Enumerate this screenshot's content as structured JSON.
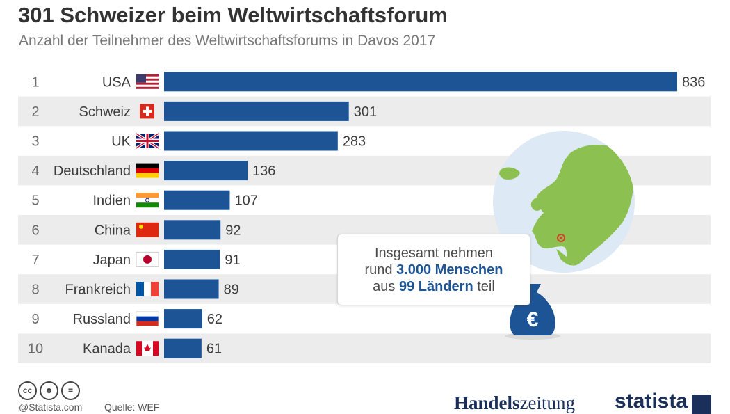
{
  "title": "301 Schweizer beim Weltwirtschaftsforum",
  "subtitle": "Anzahl der Teilnehmer des Weltwirtschaftsforums in Davos 2017",
  "chart_data": {
    "type": "bar",
    "orientation": "horizontal",
    "title": "301 Schweizer beim Weltwirtschaftsforum",
    "subtitle": "Anzahl der Teilnehmer des Weltwirtschaftsforums in Davos 2017",
    "ranks": [
      "1",
      "2",
      "3",
      "4",
      "5",
      "6",
      "7",
      "8",
      "9",
      "10"
    ],
    "categories": [
      "USA",
      "Schweiz",
      "UK",
      "Deutschland",
      "Indien",
      "China",
      "Japan",
      "Frankreich",
      "Russland",
      "Kanada"
    ],
    "values": [
      836,
      301,
      283,
      136,
      107,
      92,
      91,
      89,
      62,
      61
    ],
    "xlim": [
      0,
      836
    ],
    "grid": false,
    "bar_color": "#1d5496",
    "stripe_color": "#ececec"
  },
  "callout": {
    "line1": "Insgesamt nehmen",
    "line2_pre": "rund ",
    "line2_bold": "3.000 Menschen",
    "line3_pre": "aus ",
    "line3_bold": "99 Ländern",
    "line3_post": " teil"
  },
  "icons": [
    "europe-map-icon",
    "money-bag-euro-icon",
    "cc-icon",
    "by-icon",
    "nd-icon"
  ],
  "money_symbol": "€",
  "footer": {
    "credit": "@Statista.com",
    "source": "Quelle: WEF",
    "partner_bold": "Handels",
    "partner_rest": "zeitung",
    "brand": "statista"
  },
  "colors": {
    "bar": "#1d5496",
    "map_sea": "#dde9f4",
    "map_land": "#8cc152",
    "accent": "#1a2f5a"
  }
}
